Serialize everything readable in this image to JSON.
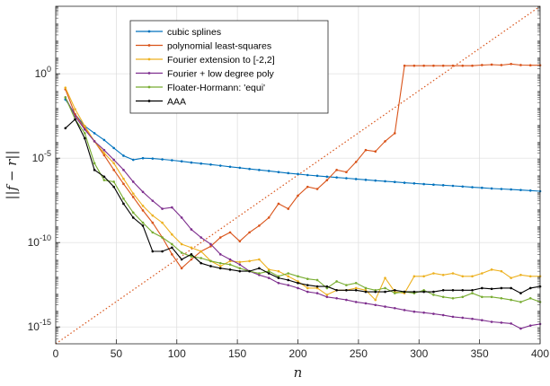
{
  "chart_data": {
    "type": "line",
    "title": "",
    "xlabel": "n",
    "ylabel": "||f − r||",
    "xlim": [
      0,
      400
    ],
    "ylim": [
      1e-16,
      10000.0
    ],
    "yscale": "log",
    "grid": true,
    "legend_position": "upper-left-center",
    "x_ticks": [
      0,
      50,
      100,
      150,
      200,
      250,
      300,
      350,
      400
    ],
    "x_tick_labels": [
      "0",
      "50",
      "100",
      "150",
      "200",
      "250",
      "300",
      "350",
      "400"
    ],
    "y_ticks": [
      1e-15,
      1e-10,
      1e-05,
      1
    ],
    "y_tick_labels": [
      {
        "base": "10",
        "exp": "-15"
      },
      {
        "base": "10",
        "exp": "-10"
      },
      {
        "base": "10",
        "exp": "-5"
      },
      {
        "base": "10",
        "exp": "0"
      }
    ],
    "reference_line": {
      "color": "#d95319",
      "style": "dotted",
      "points": [
        [
          0,
          1e-16
        ],
        [
          400,
          10000.0
        ]
      ]
    },
    "x": [
      8,
      16,
      24,
      32,
      40,
      48,
      56,
      64,
      72,
      80,
      88,
      96,
      104,
      112,
      120,
      128,
      136,
      144,
      152,
      160,
      168,
      176,
      184,
      192,
      200,
      208,
      216,
      224,
      232,
      240,
      248,
      256,
      264,
      272,
      280,
      288,
      296,
      304,
      312,
      320,
      328,
      336,
      344,
      352,
      360,
      368,
      376,
      384,
      392,
      400
    ],
    "series": [
      {
        "name": "cubic splines",
        "color": "#0072bd",
        "values": [
          0.03,
          0.004,
          0.0008,
          0.0003,
          0.00012,
          4e-05,
          1.4e-05,
          8e-06,
          1e-05,
          9.5e-06,
          8.5e-06,
          7.5e-06,
          6.5e-06,
          5.5e-06,
          4.8e-06,
          4.2e-06,
          3.6e-06,
          3.1e-06,
          2.7e-06,
          2.3e-06,
          2e-06,
          1.75e-06,
          1.5e-06,
          1.3e-06,
          1.15e-06,
          1e-06,
          9e-07,
          8e-07,
          7.2e-07,
          6.5e-07,
          5.8e-07,
          5.2e-07,
          4.7e-07,
          4.3e-07,
          3.9e-07,
          3.5e-07,
          3.2e-07,
          2.9e-07,
          2.7e-07,
          2.5e-07,
          2.3e-07,
          2.1e-07,
          1.9e-07,
          1.75e-07,
          1.6e-07,
          1.5e-07,
          1.4e-07,
          1.3e-07,
          1.2e-07,
          1.1e-07
        ]
      },
      {
        "name": "polynomial least-squares",
        "color": "#d95319",
        "values": [
          0.12,
          0.004,
          0.0006,
          0.0001,
          1.5e-05,
          2e-06,
          3e-07,
          5e-08,
          8e-09,
          1.5e-09,
          2e-10,
          2e-11,
          3e-12,
          1e-11,
          3e-11,
          6e-11,
          2e-10,
          4e-10,
          1.2e-10,
          4e-10,
          1e-09,
          3e-09,
          2e-08,
          1e-08,
          6e-08,
          2e-07,
          1.5e-07,
          5e-07,
          2e-06,
          1.5e-06,
          6e-06,
          3e-05,
          2.5e-05,
          0.0001,
          0.0003,
          3,
          3,
          3,
          3,
          3,
          3,
          3,
          3,
          3.3,
          3.5,
          3.3,
          3.8,
          3.3,
          3.2,
          3.2
        ]
      },
      {
        "name": "Fourier extension to [-2,2]",
        "color": "#edb120",
        "values": [
          0.15,
          0.008,
          0.0008,
          0.0001,
          2e-05,
          5e-06,
          6e-07,
          8e-08,
          1.5e-08,
          4e-09,
          1.5e-09,
          3e-10,
          8e-11,
          5e-11,
          3e-11,
          8e-12,
          4e-12,
          8e-12,
          7e-12,
          8e-12,
          1e-11,
          2.5e-12,
          2e-12,
          1e-12,
          5e-13,
          2e-13,
          2e-13,
          8e-14,
          1.5e-13,
          1.5e-13,
          2e-13,
          1.5e-13,
          4e-14,
          8e-13,
          1.2e-13,
          1e-13,
          1e-12,
          1e-12,
          1.5e-12,
          1.2e-12,
          1.5e-12,
          1e-12,
          1e-12,
          1.5e-12,
          2.5e-12,
          2e-12,
          8e-13,
          1.2e-12,
          1e-12,
          1e-12
        ]
      },
      {
        "name": "Fourier + low degree poly",
        "color": "#7e2f8e",
        "values": [
          0.04,
          0.003,
          0.0005,
          0.0001,
          3e-05,
          8e-06,
          2e-06,
          4e-07,
          1e-07,
          3e-08,
          1e-08,
          1.2e-08,
          3e-09,
          6e-10,
          2e-10,
          8e-11,
          2e-11,
          1e-11,
          5e-12,
          2e-12,
          1.2e-12,
          8e-13,
          4e-13,
          3e-13,
          2e-13,
          1.2e-13,
          1e-13,
          6e-14,
          5e-14,
          4e-14,
          3e-14,
          2.5e-14,
          2e-14,
          1.6e-14,
          1.3e-14,
          1e-14,
          8e-15,
          7e-15,
          6e-15,
          5e-15,
          4e-15,
          3.5e-15,
          3e-15,
          2.5e-15,
          2e-15,
          1.8e-15,
          1.6e-15,
          8e-16,
          1.2e-15,
          1.5e-15
        ]
      },
      {
        "name": "Floater-Hormann: 'equi'",
        "color": "#77ac30",
        "values": [
          0.04,
          0.002,
          0.0003,
          5e-06,
          5e-07,
          4e-07,
          4e-08,
          6e-09,
          1.5e-09,
          4e-10,
          2e-10,
          8e-11,
          2.5e-11,
          1.5e-11,
          1.2e-11,
          8e-12,
          6e-12,
          5e-12,
          3e-12,
          2e-12,
          1.5e-12,
          2e-12,
          1e-12,
          1.5e-12,
          1e-12,
          7e-13,
          6e-13,
          2e-13,
          5e-13,
          3e-13,
          4e-13,
          2e-13,
          1.5e-13,
          2e-13,
          1e-13,
          1.2e-13,
          1e-13,
          1.5e-13,
          8e-14,
          6e-14,
          5e-14,
          6e-14,
          1e-13,
          6e-14,
          6e-14,
          5e-14,
          4e-14,
          3e-14,
          5e-14,
          3e-14
        ]
      },
      {
        "name": "AAA",
        "color": "#000000",
        "values": [
          0.0006,
          0.002,
          0.00015,
          2e-06,
          8e-07,
          2e-07,
          2e-08,
          3e-09,
          1e-09,
          3e-11,
          3e-11,
          5e-11,
          1e-11,
          2e-11,
          6e-12,
          4e-12,
          3e-12,
          2.5e-12,
          2e-12,
          2e-12,
          3e-12,
          1.5e-12,
          8e-13,
          6e-13,
          4e-13,
          3e-13,
          2.5e-13,
          2.5e-13,
          1.5e-13,
          1.5e-13,
          1.5e-13,
          1.2e-13,
          1.2e-13,
          1.2e-13,
          1.5e-13,
          1.2e-13,
          1.2e-13,
          1.2e-13,
          1.2e-13,
          1.5e-13,
          1.5e-13,
          1.5e-13,
          1.5e-13,
          2e-13,
          1.8e-13,
          2e-13,
          2e-13,
          1e-13,
          2e-13,
          2.5e-13
        ]
      }
    ]
  }
}
